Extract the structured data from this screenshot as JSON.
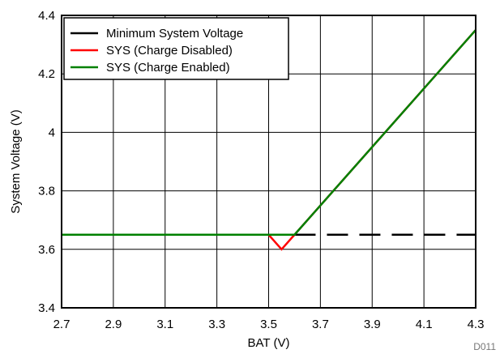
{
  "chart_data": {
    "type": "line",
    "title": "",
    "xlabel": "BAT (V)",
    "ylabel": "System Voltage (V)",
    "xlim": [
      2.7,
      4.3
    ],
    "ylim": [
      3.4,
      4.4
    ],
    "x_ticks": [
      "2.7",
      "2.9",
      "3.1",
      "3.3",
      "3.5",
      "3.7",
      "3.9",
      "4.1",
      "4.3"
    ],
    "y_ticks": [
      "3.4",
      "3.6",
      "3.8",
      "4",
      "4.2",
      "4.4"
    ],
    "grid": true,
    "legend_position": "top-left",
    "figure_id": "D011",
    "series": [
      {
        "name": "Minimum System Voltage",
        "color": "#000000",
        "style": "solid-then-dashed",
        "x": [
          2.7,
          3.6,
          4.3
        ],
        "y": [
          3.65,
          3.65,
          3.65
        ]
      },
      {
        "name": "SYS (Charge Disabled)",
        "color": "#ff0000",
        "style": "solid",
        "x": [
          2.7,
          3.5,
          3.55,
          3.6,
          4.3
        ],
        "y": [
          3.65,
          3.65,
          3.6,
          3.65,
          4.35
        ]
      },
      {
        "name": "SYS (Charge Enabled)",
        "color": "#008000",
        "style": "solid",
        "x": [
          2.7,
          3.5,
          3.6,
          3.61,
          4.3
        ],
        "y": [
          3.65,
          3.65,
          3.65,
          3.66,
          4.35
        ]
      }
    ]
  }
}
